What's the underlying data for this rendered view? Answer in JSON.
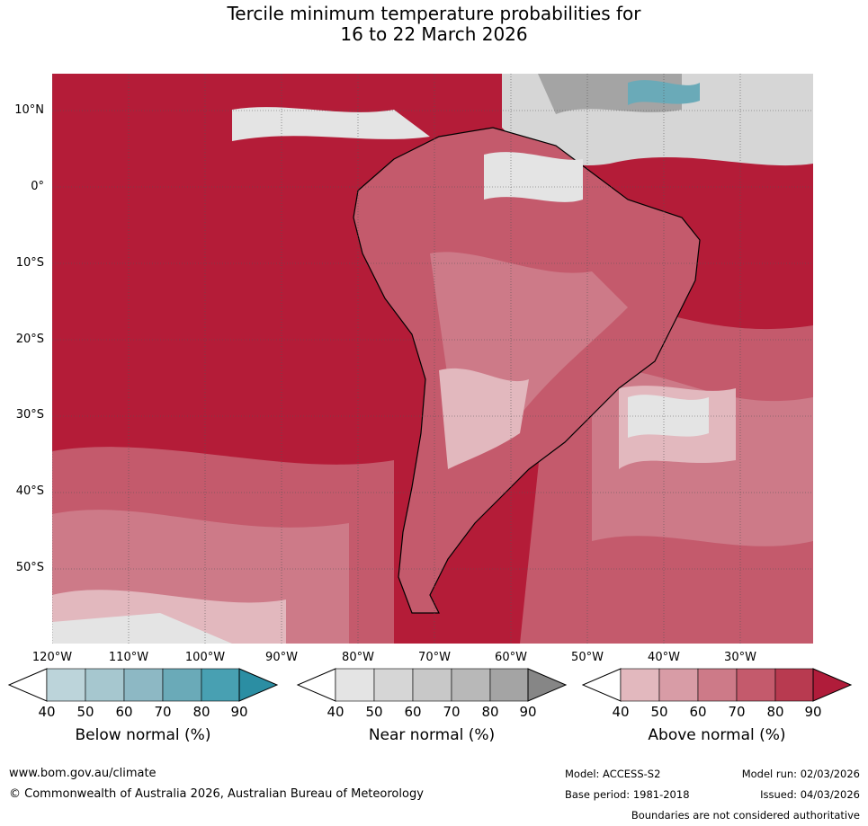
{
  "title": {
    "line1": "Tercile minimum temperature probabilities for",
    "line2": "16 to 22 March 2026"
  },
  "map": {
    "lat_labels": [
      "10°N",
      "0°",
      "10°S",
      "20°S",
      "30°S",
      "40°S",
      "50°S"
    ],
    "lon_labels": [
      "120°W",
      "110°W",
      "100°W",
      "90°W",
      "80°W",
      "70°W",
      "60°W",
      "50°W",
      "40°W",
      "30°W"
    ]
  },
  "legend": {
    "below": {
      "label": "Below normal (%)",
      "ticks": [
        "40",
        "50",
        "60",
        "70",
        "80",
        "90"
      ],
      "colors": [
        "#ffffff",
        "#bcd4da",
        "#a6c7cf",
        "#8db8c4",
        "#6aaab8",
        "#48a0b2",
        "#2b8ea3"
      ]
    },
    "near": {
      "label": "Near normal (%)",
      "ticks": [
        "40",
        "50",
        "60",
        "70",
        "80",
        "90"
      ],
      "colors": [
        "#ffffff",
        "#e4e4e4",
        "#d6d6d6",
        "#c8c8c8",
        "#b8b8b8",
        "#a4a4a4",
        "#868686"
      ]
    },
    "above": {
      "label": "Above normal (%)",
      "ticks": [
        "40",
        "50",
        "60",
        "70",
        "80",
        "90"
      ],
      "colors": [
        "#ffffff",
        "#e2b8be",
        "#d89ca6",
        "#cd7a88",
        "#c45a6c",
        "#b83a50",
        "#b01c3a"
      ]
    }
  },
  "footer": {
    "website": "www.bom.gov.au/climate",
    "copyright": "© Commonwealth of Australia 2026, Australian Bureau of Meteorology",
    "model": "Model: ACCESS-S2",
    "model_run": "Model run: 02/03/2026",
    "base_period": "Base period: 1981-2018",
    "issued": "Issued: 04/03/2026",
    "disclaimer": "Boundaries are not considered authoritative"
  }
}
